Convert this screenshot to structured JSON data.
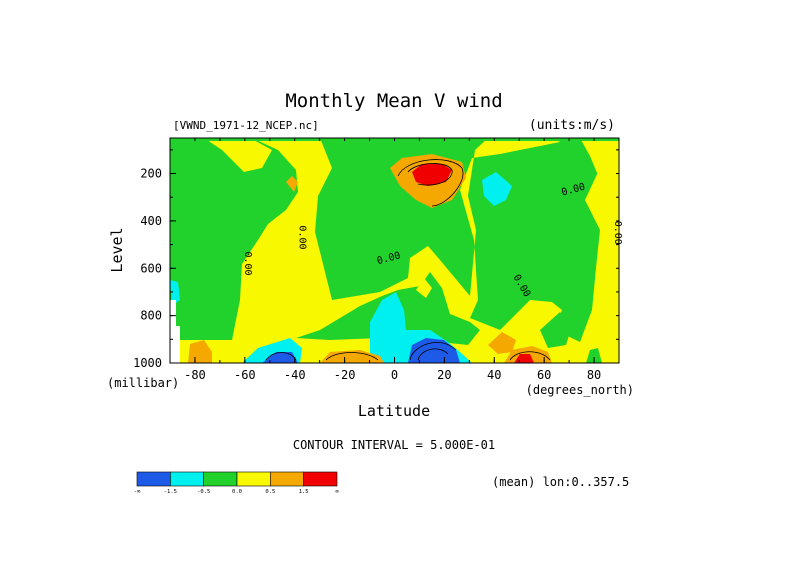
{
  "chart_data": {
    "type": "heatmap",
    "title": "Monthly Mean V wind",
    "file_label": "[VWND_1971-12_NCEP.nc]",
    "units_label": "(units:m/s)",
    "xlabel": "Latitude",
    "x_units": "(degrees_north)",
    "ylabel": "Level",
    "y_units": "(millibar)",
    "xlim": [
      -90,
      90
    ],
    "ylim": [
      1000,
      50
    ],
    "x_ticks": [
      "-80",
      "-60",
      "-40",
      "-20",
      "0",
      "20",
      "40",
      "60",
      "80"
    ],
    "y_ticks": [
      "200",
      "400",
      "600",
      "800",
      "1000"
    ],
    "contour_interval_label": "CONTOUR INTERVAL = 5.000E-01",
    "contour_labels": [
      {
        "text": "0.00",
        "x": -60,
        "y": 580
      },
      {
        "text": "0.00",
        "x": -38,
        "y": 470
      },
      {
        "text": "0.00",
        "x": -2,
        "y": 570
      },
      {
        "text": "0.00",
        "x": 50,
        "y": 680
      },
      {
        "text": "0.00",
        "x": 72,
        "y": 280
      },
      {
        "text": "0.00",
        "x": 90,
        "y": 450
      }
    ],
    "filled_levels": [
      {
        "range": "< -1.5",
        "color": "#1e5ae8"
      },
      {
        "range": "-1.5 to -0.5",
        "color": "#00f0f0"
      },
      {
        "range": "-0.5 to 0.0",
        "color": "#22d22c"
      },
      {
        "range": "0.0 to 0.5",
        "color": "#f8f800"
      },
      {
        "range": "0.5 to 1.5",
        "color": "#f4a800"
      },
      {
        "range": "> 1.5",
        "color": "#f00000"
      }
    ],
    "colorbar_labels": [
      "-∞",
      "-1.5",
      "-0.5",
      "0.0",
      "0.5",
      "1.5",
      "∞"
    ],
    "footnote": "(mean) lon:0..357.5"
  }
}
